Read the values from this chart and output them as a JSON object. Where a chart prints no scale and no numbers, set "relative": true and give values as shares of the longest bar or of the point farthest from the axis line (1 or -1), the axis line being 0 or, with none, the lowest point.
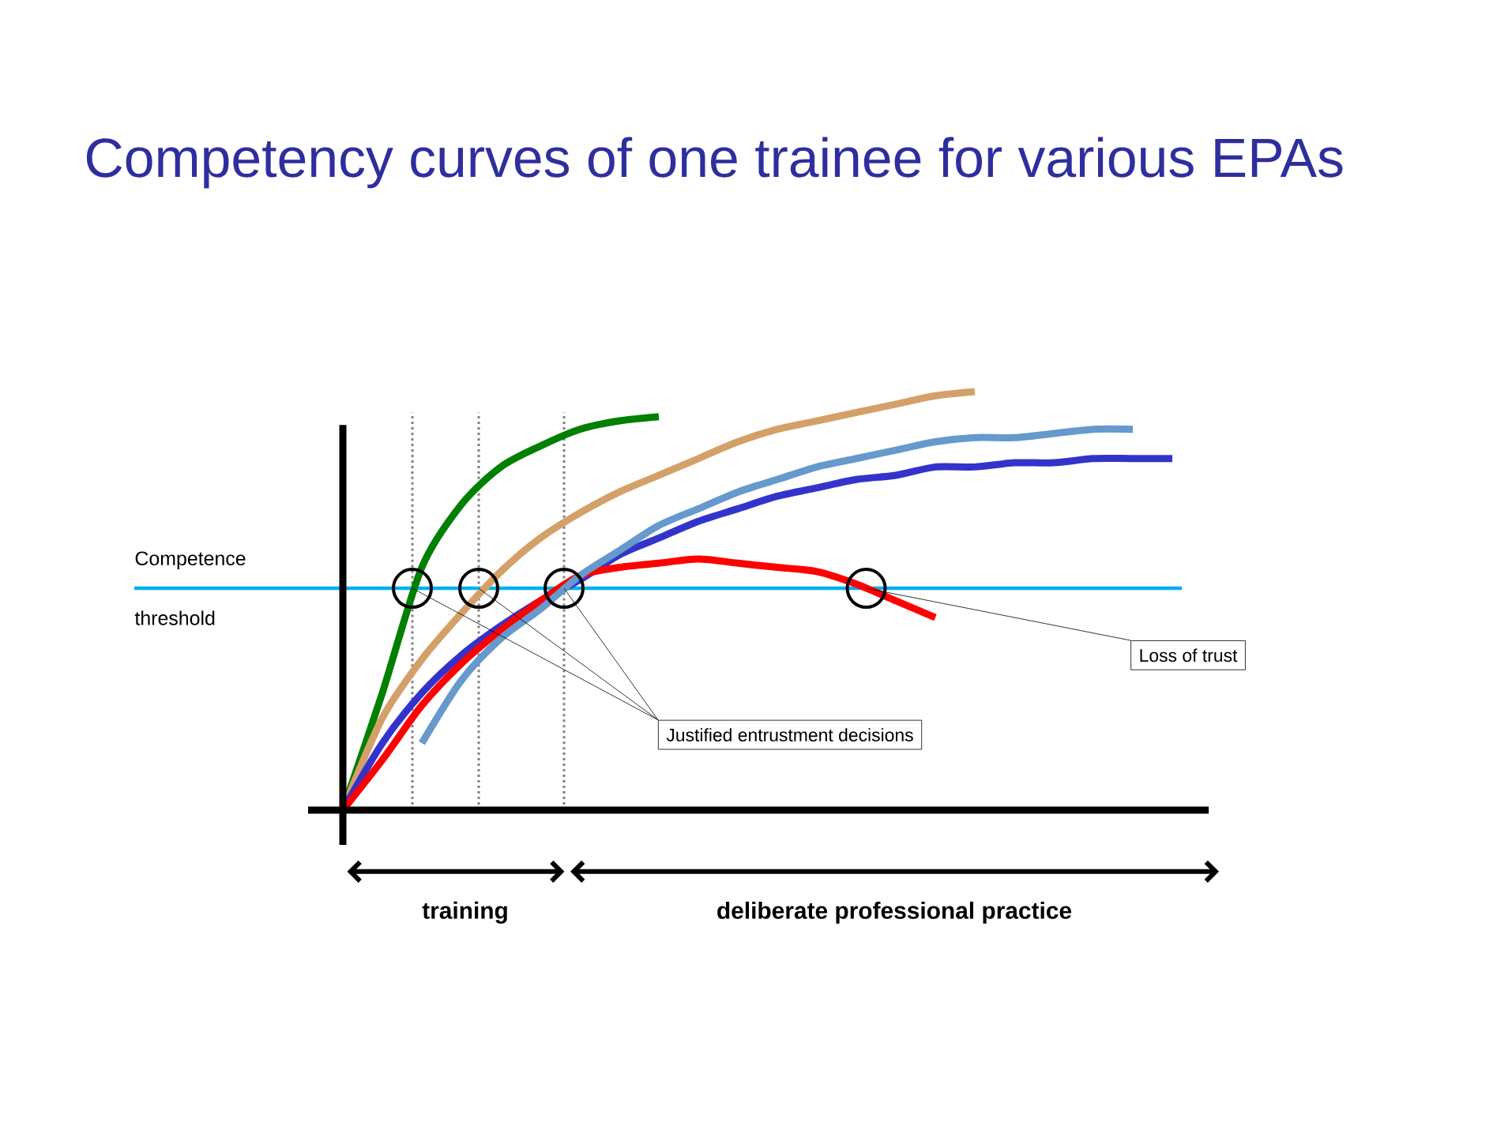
{
  "chart_data": {
    "type": "line",
    "relative": true,
    "title": "Competency curves of one trainee for various EPAs",
    "categories": [
      null,
      null,
      null,
      null,
      null,
      null,
      null,
      null,
      null,
      null,
      null,
      null,
      null,
      null,
      null,
      null,
      null,
      null,
      null,
      null,
      null,
      null
    ],
    "series": [
      {
        "color": "#008000",
        "values": [
          0,
          0.28,
          0.58,
          0.73,
          0.82,
          0.87,
          0.91,
          0.93,
          0.94,
          null,
          null,
          null,
          null,
          null,
          null,
          null,
          null,
          null,
          null,
          null,
          null,
          null
        ]
      },
      {
        "color": "#d4a06a",
        "values": [
          0,
          0.22,
          0.36,
          0.47,
          0.57,
          0.65,
          0.71,
          0.76,
          0.8,
          0.84,
          0.88,
          0.91,
          0.93,
          0.95,
          0.97,
          0.99,
          1.0,
          null,
          null,
          null,
          null,
          null
        ]
      },
      {
        "color": "#3333cc",
        "values": [
          0,
          0.16,
          0.28,
          0.37,
          0.44,
          0.5,
          0.55,
          0.61,
          0.65,
          0.69,
          0.72,
          0.75,
          0.77,
          0.79,
          0.8,
          0.82,
          0.82,
          0.83,
          0.83,
          0.84,
          0.84,
          0.84
        ]
      },
      {
        "color": "#ff0000",
        "values": [
          0,
          0.12,
          0.25,
          0.35,
          0.43,
          0.5,
          0.56,
          0.58,
          0.59,
          0.6,
          0.59,
          0.58,
          0.57,
          0.54,
          0.5,
          0.46,
          null,
          null,
          null,
          null,
          null,
          null
        ]
      },
      {
        "color": "#6699cc",
        "values": [
          null,
          null,
          0.16,
          0.31,
          0.41,
          0.48,
          0.56,
          0.62,
          0.68,
          0.72,
          0.76,
          0.79,
          0.82,
          0.84,
          0.86,
          0.88,
          0.89,
          0.89,
          0.9,
          0.91,
          0.91,
          null
        ]
      }
    ],
    "ref_lines": [
      {
        "axis": "y",
        "value": 0.53,
        "label": "Competence threshold",
        "color": "#00b0f0"
      }
    ],
    "annotations": [
      "Justified entrustment decisions",
      "Loss of trust",
      "training",
      "deliberate professional practice"
    ]
  }
}
